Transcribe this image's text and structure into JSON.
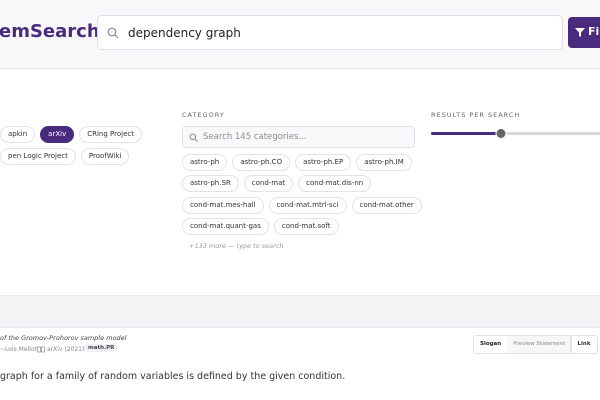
{
  "header": {
    "logo": "emSearch",
    "query": "dependency graph",
    "button": "Fi"
  },
  "sources": {
    "rows": [
      [
        "apkin",
        "arXiv",
        "CRing Project"
      ],
      [
        "pen Logic Project",
        "ProofWiki"
      ]
    ],
    "selected": "arXiv"
  },
  "category": {
    "label": "CATEGORY",
    "placeholder": "Search 145 categories...",
    "rows": [
      [
        "astro-ph",
        "astro-ph.CO",
        "astro-ph.EP",
        "astro-ph.IM"
      ],
      [
        "astro-ph.SR",
        "cond-mat",
        "cond-mat.dis-nn"
      ],
      [
        "cond-mat.mes-hall",
        "cond-mat.mtrl-sci",
        "cond-mat.other"
      ],
      [
        "cond-mat.quant-gas",
        "cond-mat.soft"
      ]
    ],
    "more": "+133 more — type to search"
  },
  "results_per_search": {
    "label": "RESULTS PER SEARCH"
  },
  "result": {
    "title": "of the Gromov-Prohorov sample model",
    "author": "~Lois Mellot",
    "source": "arXiv (2021)",
    "tag": "math.PR",
    "buttons": [
      "Slogan",
      "Preview Statement"
    ],
    "link": "Link",
    "snippet": "graph for a family of random variables is defined by the given condition."
  }
}
